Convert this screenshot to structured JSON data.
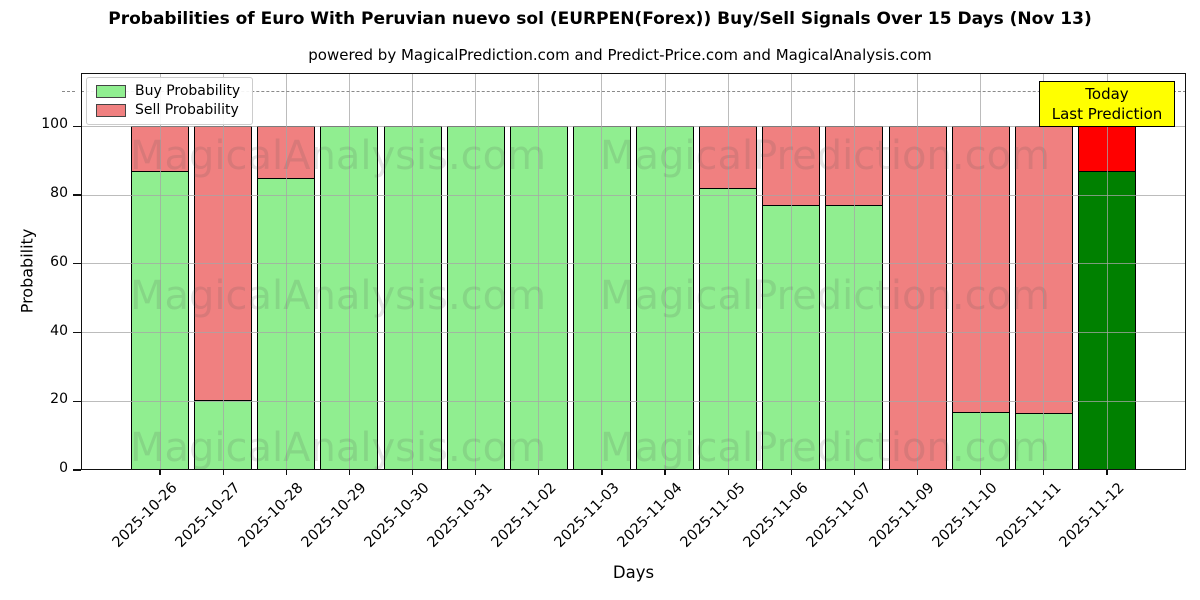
{
  "header": {
    "title": "Probabilities of Euro With Peruvian nuevo sol (EURPEN(Forex)) Buy/Sell Signals Over 15 Days (Nov 13)",
    "subtitle": "powered by MagicalPrediction.com and Predict-Price.com and MagicalAnalysis.com"
  },
  "chart_data": {
    "type": "bar",
    "stacked": true,
    "title": "Probabilities of Euro With Peruvian nuevo sol (EURPEN(Forex)) Buy/Sell Signals Over 15 Days (Nov 13)",
    "xlabel": "Days",
    "ylabel": "Probability",
    "ylim": [
      0,
      115.5
    ],
    "yticks": [
      0,
      20,
      40,
      60,
      80,
      100
    ],
    "grid": true,
    "dashed_line_y": 110,
    "legend_position": "upper-left",
    "categories": [
      "2025-10-26",
      "2025-10-27",
      "2025-10-28",
      "2025-10-29",
      "2025-10-30",
      "2025-10-31",
      "2025-11-02",
      "2025-11-03",
      "2025-11-04",
      "2025-11-05",
      "2025-11-06",
      "2025-11-07",
      "2025-11-09",
      "2025-11-10",
      "2025-11-11",
      "2025-11-12"
    ],
    "series": [
      {
        "name": "Buy Probability",
        "color": "#90ee90",
        "values": [
          87,
          20.5,
          85,
          100,
          100,
          100,
          100,
          100,
          100,
          82,
          77,
          77,
          0,
          17,
          16.5,
          87
        ]
      },
      {
        "name": "Sell Probability",
        "color": "#f08080",
        "values": [
          13,
          79.5,
          15,
          0,
          0,
          0,
          0,
          0,
          0,
          18,
          23,
          23,
          100,
          83,
          83.5,
          13
        ]
      }
    ],
    "today": {
      "index": 15,
      "buy_color": "#008000",
      "sell_color": "#ff0000"
    },
    "annotation": {
      "lines": [
        "Today",
        "Last Prediction"
      ],
      "bg_color": "#ffff00"
    },
    "watermarks": [
      "MagicalAnalysis.com",
      "MagicalPrediction.com"
    ],
    "colors": {
      "grid": "#b0b0b0",
      "spine": "#111111",
      "bar_edge": "#000000"
    }
  }
}
